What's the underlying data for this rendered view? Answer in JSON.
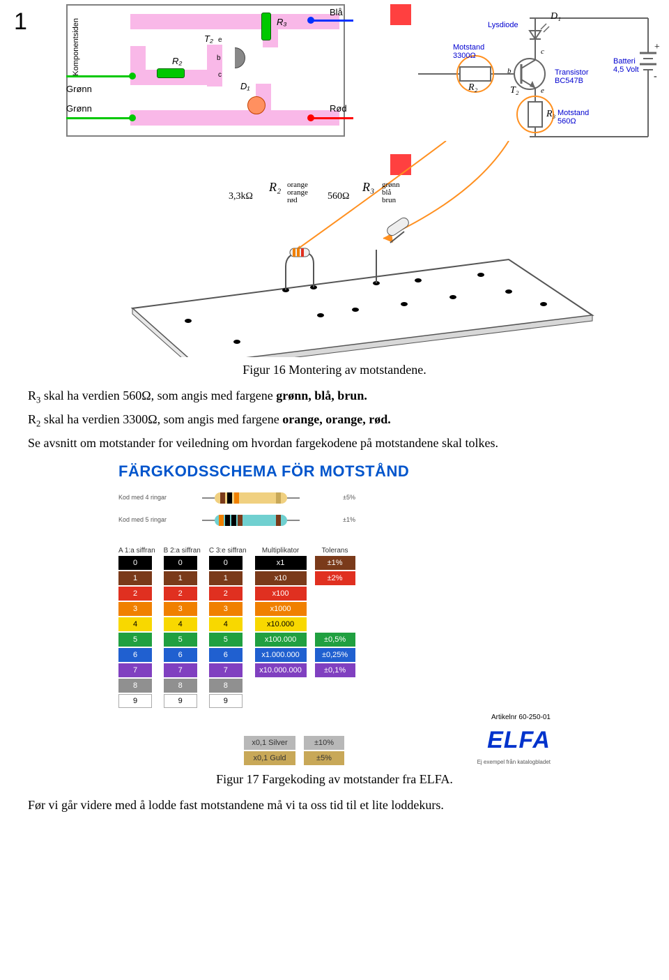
{
  "page_number": "1",
  "pcb": {
    "side_label": "Komponentsiden",
    "labels": {
      "gronn1": "Grønn",
      "gronn2": "Grønn",
      "bla": "Blå",
      "rod": "Rød",
      "T2": "T₂",
      "R2": "R₂",
      "R3": "R₃",
      "D1": "D₁",
      "b": "b",
      "e": "e",
      "c": "c"
    },
    "colors": {
      "green": "#00c800",
      "blue": "#0030ff",
      "red": "#ff0000",
      "trace": "#f5b2e4",
      "comp": "#00b800"
    }
  },
  "schematic": {
    "labels": {
      "D1": "D₁",
      "lysdiode": "Lysdiode",
      "motstand_r2": "Motstand 3300Ω",
      "motstand_r3": "Motstand 560Ω",
      "transistor": "Transistor BC547B",
      "batteri": "Batteri 4,5 Volt",
      "R2": "R₂",
      "R3": "R₃",
      "T2": "T₂",
      "c": "c",
      "b": "b",
      "e": "e",
      "plus": "+",
      "minus": "-"
    }
  },
  "board3d": {
    "R2_val": "3,3kΩ",
    "R2_name": "R₂",
    "R2_colors": "orange orange rød",
    "R3_val": "560Ω",
    "R3_name": "R₃",
    "R3_colors": "grønn blå brun"
  },
  "caption16": "Figur 16 Montering av motstandene.",
  "para1_a": "R",
  "para1_b": " skal ha verdien 560Ω, som angis med fargene ",
  "para1_c": "grønn, blå, brun.",
  "para2_a": "R",
  "para2_b": " skal ha verdien 3300Ω, som angis med fargene ",
  "para2_c": "orange, orange, rød.",
  "para3": "Se avsnitt om motstander for veiledning om hvordan fargekodene på motstandene skal tolkes.",
  "chart": {
    "title": "FÄRGKODSSCHEMA FÖR MOTSTÅND",
    "resistor4_body": "#f0d080",
    "resistor5_body": "#70d0d0",
    "left_small_1": "Kod med 4 ringar",
    "left_small_2": "Kod med 5 ringar",
    "col_heads": [
      "A 1:a siffran",
      "B 2:a siffran",
      "C 3:e siffran",
      "Multiplikator",
      "Tolerans"
    ],
    "digits": [
      "0",
      "1",
      "2",
      "3",
      "4",
      "5",
      "6",
      "7",
      "8",
      "9"
    ],
    "digit_colors": [
      "#000000",
      "#7a3a1a",
      "#e03020",
      "#f08000",
      "#f8d800",
      "#20a040",
      "#2060d0",
      "#8040c0",
      "#909090",
      "#ffffff"
    ],
    "digit_textcolors": [
      "#fff",
      "#fff",
      "#fff",
      "#fff",
      "#000",
      "#fff",
      "#fff",
      "#fff",
      "#fff",
      "#000"
    ],
    "multipliers": [
      "x1",
      "x10",
      "x100",
      "x1000",
      "x10.000",
      "x100.000",
      "x1.000.000",
      "x10.000.000"
    ],
    "mult_extra": [
      "x0,1  Silver",
      "x0,1  Guld"
    ],
    "mult_extra_colors": [
      "#b8b8b8",
      "#c8a858"
    ],
    "tolerances": [
      "±1%",
      "±2%",
      "",
      "",
      "",
      "±0,5%",
      "±0,25%",
      "±0,1%"
    ],
    "tol_colors": [
      "#7a3a1a",
      "#e03020",
      "",
      "",
      "",
      "#20a040",
      "#2060d0",
      "#8040c0"
    ],
    "tol_extra": [
      "±10%",
      "±5%"
    ],
    "tol_extra_colors": [
      "#b8b8b8",
      "#c8a858"
    ],
    "right_perc_1": "±5%",
    "right_perc_2": "±1%",
    "artnr": "Artikelnr 60-250-01",
    "elfa": "ELFA",
    "right_note": "Ej exempel från katalogbladet"
  },
  "caption17": "Figur 17 Fargekoding av motstander fra ELFA.",
  "para4": "Før vi går videre med å lodde fast motstandene må vi ta oss tid til et lite loddekurs."
}
